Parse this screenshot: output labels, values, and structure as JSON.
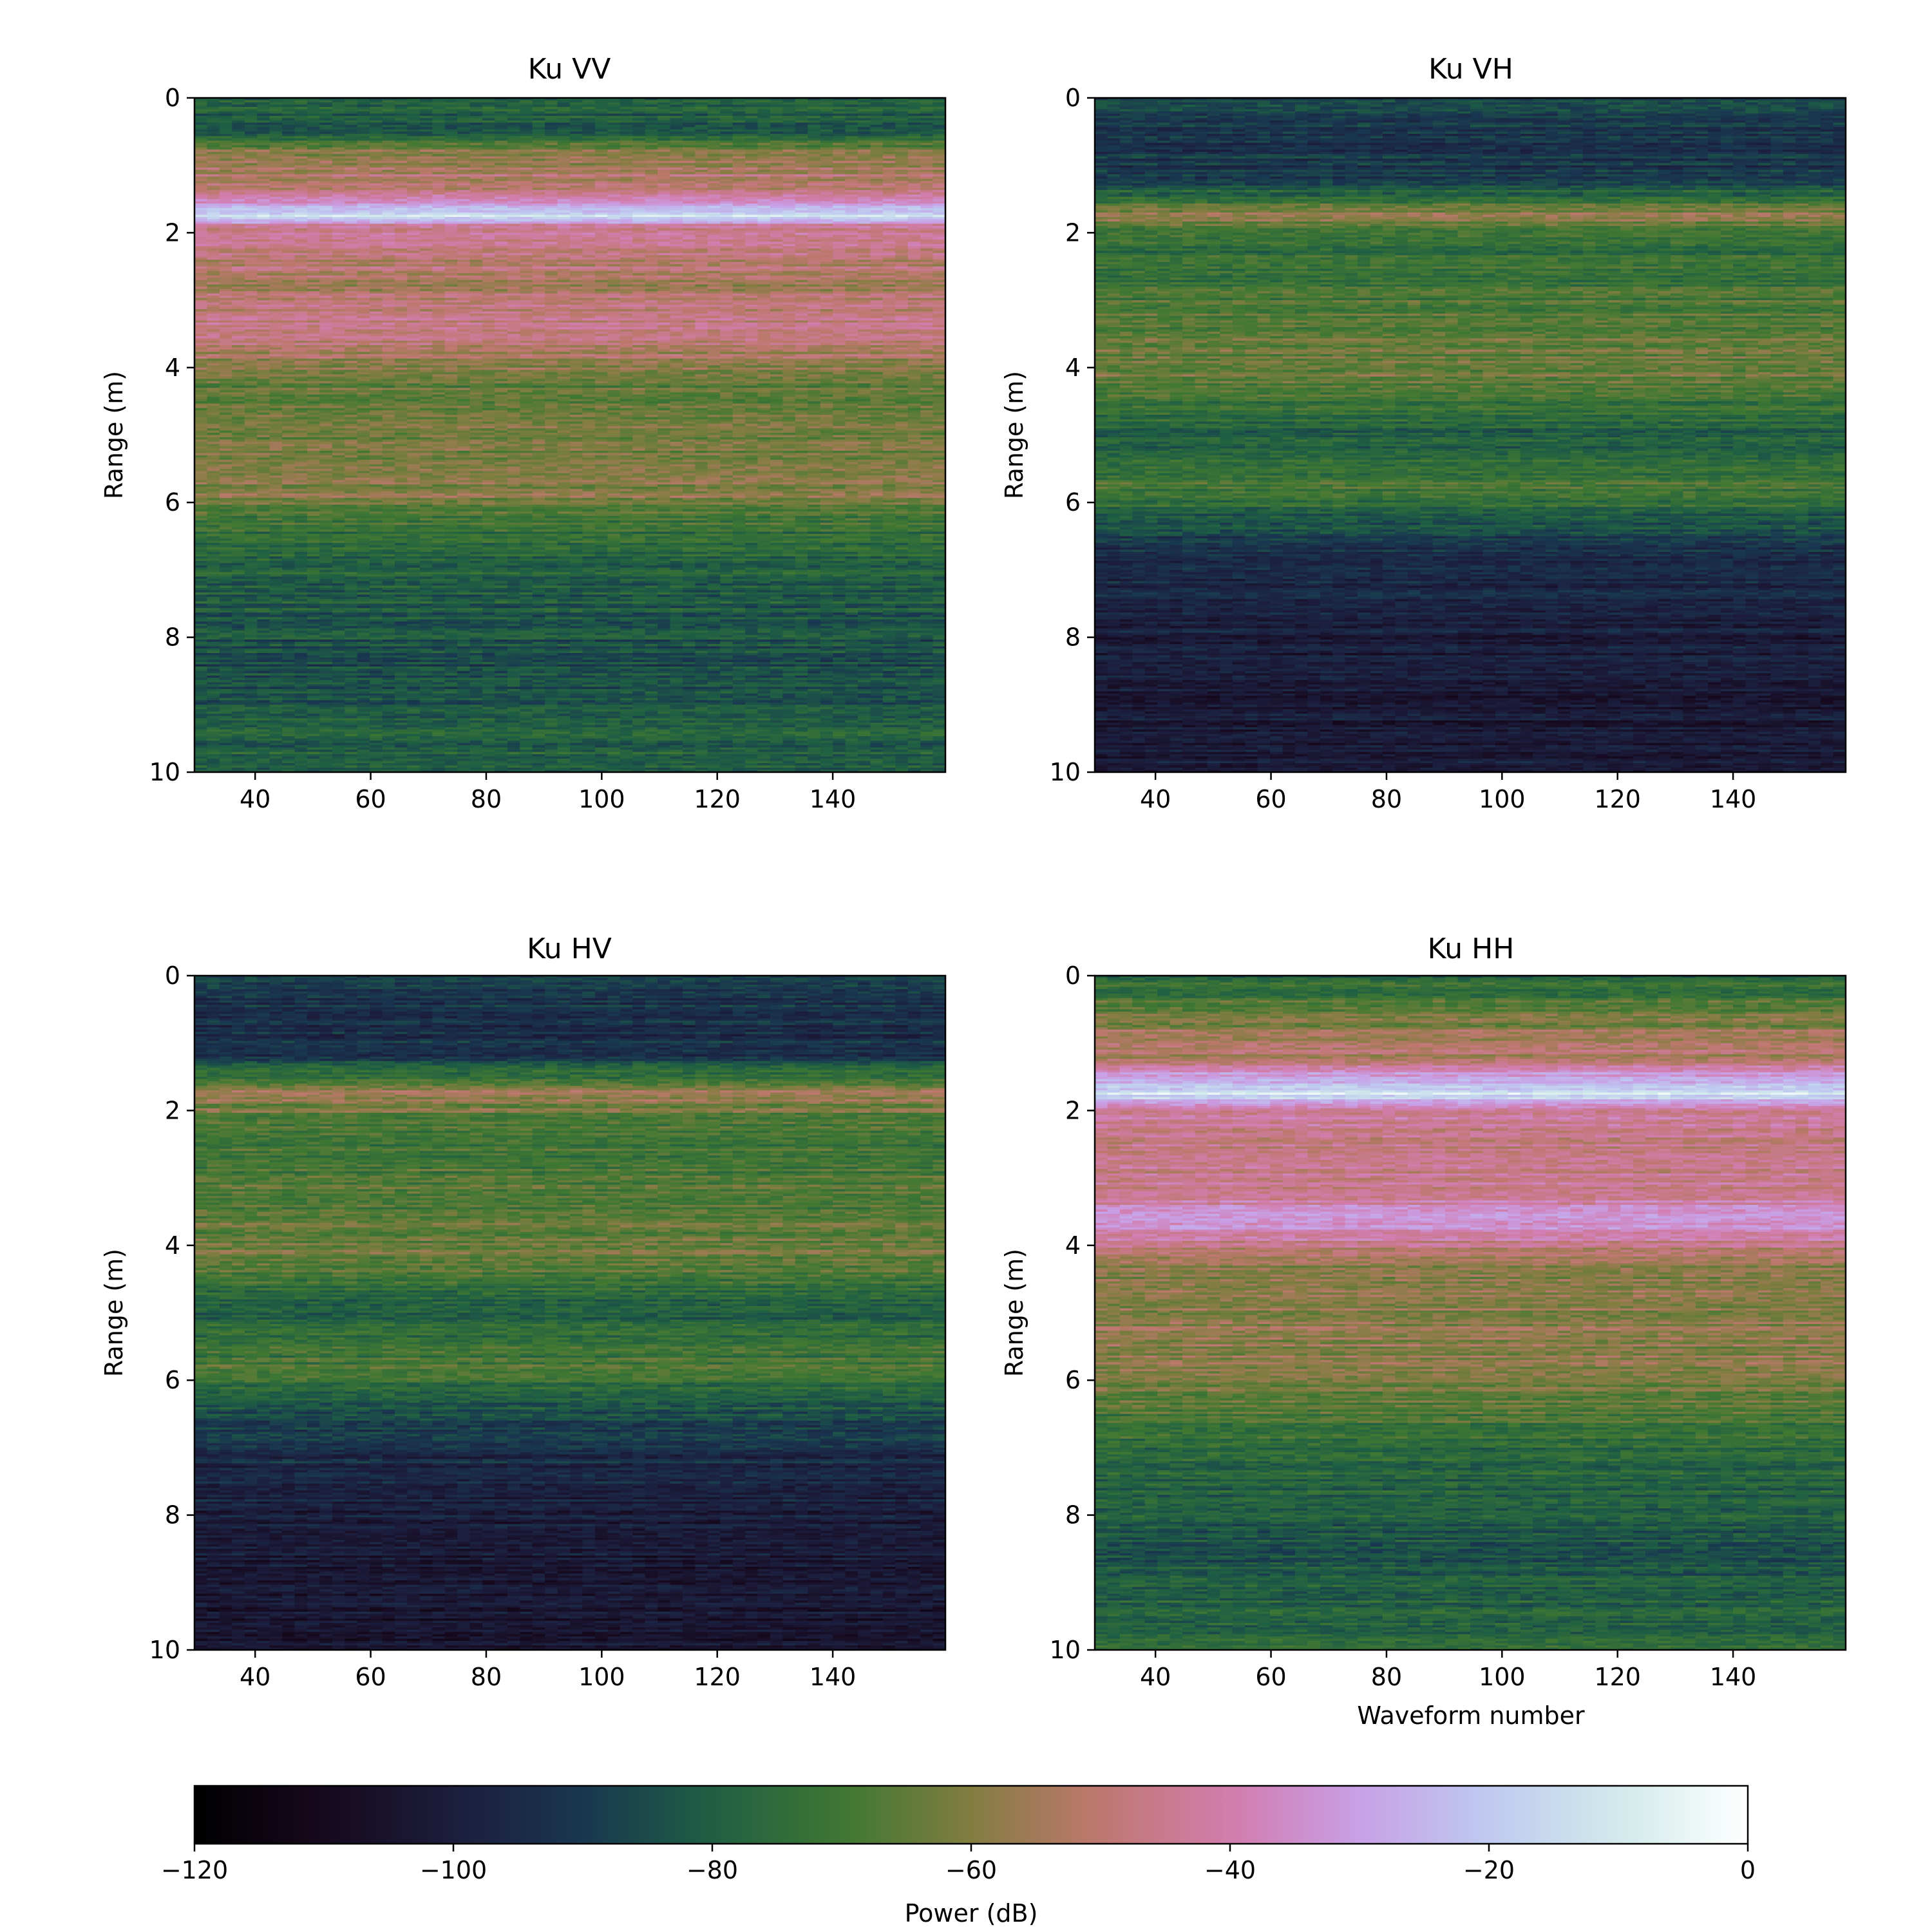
{
  "colorbar": {
    "label": "Power (dB)",
    "ticks": [
      -120,
      -100,
      -80,
      -60,
      -40,
      -20,
      0
    ],
    "tick_labels": [
      "−120",
      "−100",
      "−80",
      "−60",
      "−40",
      "−20",
      "0"
    ],
    "range": [
      -120,
      0
    ],
    "colormap": "cubehelix"
  },
  "chart_data": [
    {
      "type": "heatmap",
      "title": "Ku VV",
      "xlabel": "",
      "ylabel": "Range (m)",
      "xlim": [
        29.5,
        159.5
      ],
      "ylim": [
        10,
        0
      ],
      "xticks": [
        40,
        60,
        80,
        100,
        120,
        140
      ],
      "yticks": [
        0,
        2,
        4,
        6,
        8,
        10
      ],
      "value_range_db": [
        -120,
        0
      ],
      "range_profile_db": [
        {
          "range": 0.0,
          "db": -80
        },
        {
          "range": 0.5,
          "db": -82
        },
        {
          "range": 0.8,
          "db": -60
        },
        {
          "range": 1.1,
          "db": -52
        },
        {
          "range": 1.4,
          "db": -50
        },
        {
          "range": 1.75,
          "db": -12
        },
        {
          "range": 1.9,
          "db": -44
        },
        {
          "range": 2.3,
          "db": -47
        },
        {
          "range": 2.8,
          "db": -55
        },
        {
          "range": 3.2,
          "db": -48
        },
        {
          "range": 3.5,
          "db": -46
        },
        {
          "range": 4.2,
          "db": -65
        },
        {
          "range": 5.1,
          "db": -62
        },
        {
          "range": 5.9,
          "db": -60
        },
        {
          "range": 6.5,
          "db": -76
        },
        {
          "range": 8.5,
          "db": -86
        },
        {
          "range": 9.8,
          "db": -78
        }
      ]
    },
    {
      "type": "heatmap",
      "title": "Ku VH",
      "xlabel": "",
      "ylabel": "Range (m)",
      "xlim": [
        29.5,
        159.5
      ],
      "ylim": [
        10,
        0
      ],
      "xticks": [
        40,
        60,
        80,
        100,
        120,
        140
      ],
      "yticks": [
        0,
        2,
        4,
        6,
        8,
        10
      ],
      "value_range_db": [
        -120,
        0
      ],
      "range_profile_db": [
        {
          "range": 0.0,
          "db": -86
        },
        {
          "range": 0.6,
          "db": -92
        },
        {
          "range": 1.2,
          "db": -90
        },
        {
          "range": 1.75,
          "db": -58
        },
        {
          "range": 2.2,
          "db": -75
        },
        {
          "range": 3.6,
          "db": -64
        },
        {
          "range": 4.1,
          "db": -63
        },
        {
          "range": 5.0,
          "db": -80
        },
        {
          "range": 5.8,
          "db": -70
        },
        {
          "range": 6.7,
          "db": -92
        },
        {
          "range": 8.0,
          "db": -100
        },
        {
          "range": 9.5,
          "db": -102
        }
      ]
    },
    {
      "type": "heatmap",
      "title": "Ku HV",
      "xlabel": "",
      "ylabel": "Range (m)",
      "xlim": [
        29.5,
        159.5
      ],
      "ylim": [
        10,
        0
      ],
      "xticks": [
        40,
        60,
        80,
        100,
        120,
        140
      ],
      "yticks": [
        0,
        2,
        4,
        6,
        8,
        10
      ],
      "value_range_db": [
        -120,
        0
      ],
      "range_profile_db": [
        {
          "range": 0.0,
          "db": -86
        },
        {
          "range": 0.6,
          "db": -94
        },
        {
          "range": 1.2,
          "db": -92
        },
        {
          "range": 1.75,
          "db": -56
        },
        {
          "range": 2.3,
          "db": -72
        },
        {
          "range": 3.6,
          "db": -66
        },
        {
          "range": 4.1,
          "db": -62
        },
        {
          "range": 5.0,
          "db": -80
        },
        {
          "range": 5.8,
          "db": -68
        },
        {
          "range": 6.8,
          "db": -92
        },
        {
          "range": 8.3,
          "db": -102
        },
        {
          "range": 9.6,
          "db": -104
        }
      ]
    },
    {
      "type": "heatmap",
      "title": "Ku HH",
      "xlabel": "Waveform number",
      "ylabel": "Range (m)",
      "xlim": [
        29.5,
        159.5
      ],
      "ylim": [
        10,
        0
      ],
      "xticks": [
        40,
        60,
        80,
        100,
        120,
        140
      ],
      "yticks": [
        0,
        2,
        4,
        6,
        8,
        10
      ],
      "value_range_db": [
        -120,
        0
      ],
      "range_profile_db": [
        {
          "range": 0.0,
          "db": -78
        },
        {
          "range": 0.8,
          "db": -58
        },
        {
          "range": 1.2,
          "db": -52
        },
        {
          "range": 1.75,
          "db": -12
        },
        {
          "range": 2.0,
          "db": -42
        },
        {
          "range": 2.6,
          "db": -48
        },
        {
          "range": 3.3,
          "db": -44
        },
        {
          "range": 3.6,
          "db": -30
        },
        {
          "range": 4.3,
          "db": -60
        },
        {
          "range": 5.2,
          "db": -58
        },
        {
          "range": 5.9,
          "db": -60
        },
        {
          "range": 7.0,
          "db": -76
        },
        {
          "range": 8.6,
          "db": -84
        },
        {
          "range": 9.8,
          "db": -76
        }
      ]
    }
  ]
}
